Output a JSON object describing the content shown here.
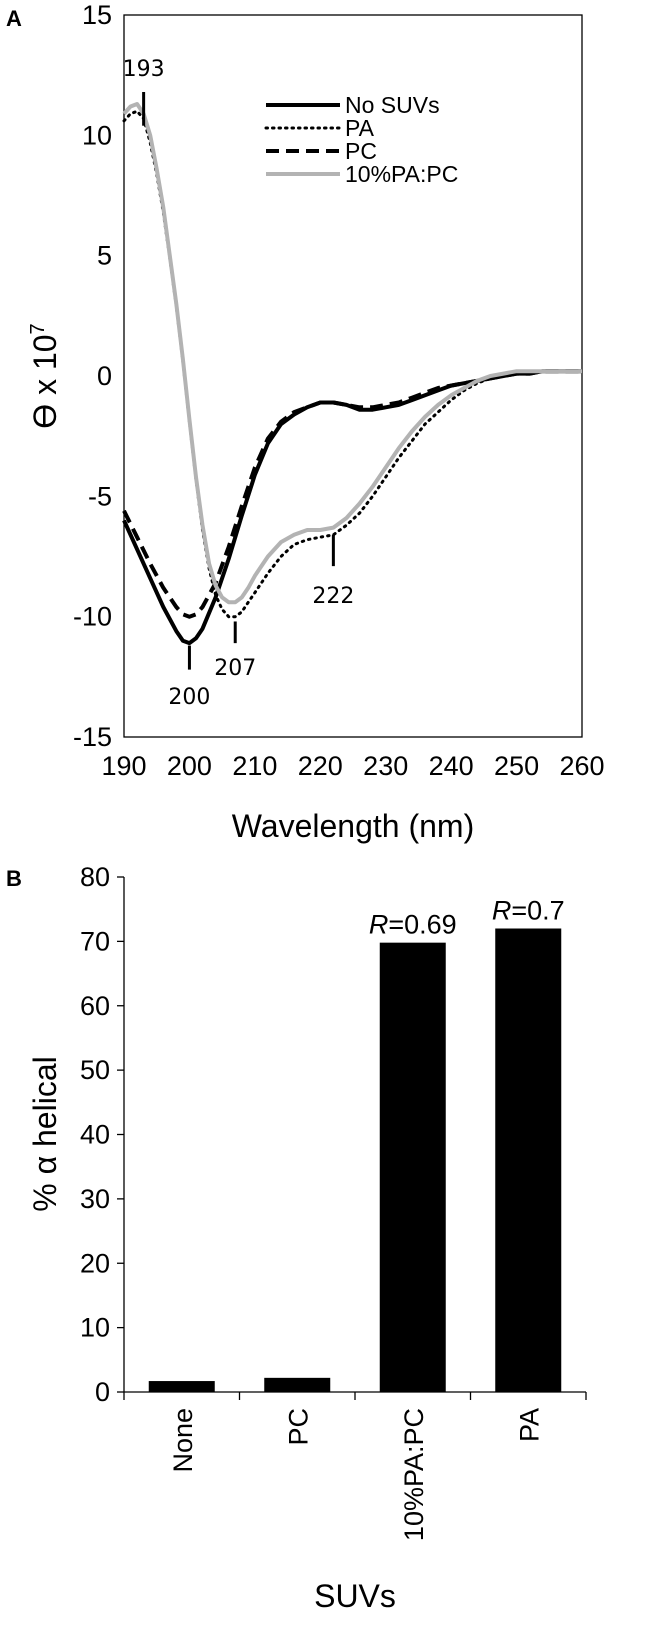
{
  "chart_data": [
    {
      "panel": "A",
      "type": "line",
      "xlabel": "Wavelength (nm)",
      "ylabel": "ϴ x 10",
      "ylabel_sup": "7",
      "xlim": [
        190,
        260
      ],
      "ylim": [
        -15,
        15
      ],
      "xticks": [
        190,
        200,
        210,
        220,
        230,
        240,
        250,
        260
      ],
      "yticks": [
        -15,
        -10,
        -5,
        0,
        5,
        10,
        15
      ],
      "grid": false,
      "legend": "top-right",
      "series": [
        {
          "name": "No SUVs",
          "color": "#000000",
          "dash": "solid",
          "x": [
            190,
            192,
            194,
            196,
            198,
            199,
            200,
            201,
            202,
            204,
            206,
            208,
            210,
            212,
            214,
            216,
            218,
            220,
            222,
            224,
            226,
            228,
            230,
            232,
            234,
            236,
            238,
            240,
            242,
            244,
            246,
            248,
            250,
            252,
            254,
            256,
            258,
            260
          ],
          "y": [
            -6,
            -7.2,
            -8.4,
            -9.6,
            -10.6,
            -11,
            -11.1,
            -10.9,
            -10.5,
            -9.2,
            -7.6,
            -5.8,
            -4.1,
            -2.8,
            -2,
            -1.6,
            -1.3,
            -1.1,
            -1.1,
            -1.2,
            -1.4,
            -1.4,
            -1.3,
            -1.2,
            -1,
            -0.8,
            -0.6,
            -0.4,
            -0.3,
            -0.2,
            -0.1,
            0,
            0.1,
            0.1,
            0.2,
            0.2,
            0.2,
            0.2
          ]
        },
        {
          "name": "PA",
          "color": "#000000",
          "dash": "dotted",
          "x": [
            190,
            191,
            192,
            193,
            194,
            195,
            196,
            197,
            198,
            199,
            200,
            201,
            202,
            203,
            204,
            205,
            206,
            207,
            208,
            209,
            210,
            212,
            214,
            216,
            218,
            220,
            222,
            224,
            226,
            228,
            230,
            232,
            234,
            236,
            238,
            240,
            242,
            244,
            246,
            248,
            250,
            252,
            254,
            256,
            258,
            260
          ],
          "y": [
            10.6,
            10.9,
            11,
            10.7,
            9.7,
            8.4,
            6.8,
            4.9,
            2.9,
            0.6,
            -1.9,
            -4.3,
            -6.4,
            -8,
            -9.1,
            -9.7,
            -10,
            -10,
            -9.8,
            -9.4,
            -9,
            -8.2,
            -7.5,
            -7,
            -6.8,
            -6.7,
            -6.6,
            -6.2,
            -5.7,
            -5,
            -4.2,
            -3.4,
            -2.7,
            -2,
            -1.5,
            -1,
            -0.6,
            -0.3,
            -0.1,
            0,
            0.1,
            0.2,
            0.2,
            0.2,
            0.2,
            0.2
          ]
        },
        {
          "name": "PC",
          "color": "#000000",
          "dash": "dashed",
          "x": [
            190,
            192,
            194,
            196,
            198,
            199,
            200,
            201,
            202,
            204,
            206,
            208,
            210,
            212,
            214,
            216,
            218,
            220,
            222,
            224,
            226,
            228,
            230,
            232,
            234,
            236,
            238,
            240,
            242,
            244,
            246,
            248,
            250,
            252,
            254,
            256,
            258,
            260
          ],
          "y": [
            -5.6,
            -6.7,
            -7.8,
            -8.8,
            -9.6,
            -9.9,
            -10,
            -9.9,
            -9.6,
            -8.6,
            -7.1,
            -5.4,
            -3.8,
            -2.6,
            -1.9,
            -1.5,
            -1.3,
            -1.1,
            -1.1,
            -1.2,
            -1.3,
            -1.3,
            -1.2,
            -1.1,
            -0.9,
            -0.7,
            -0.5,
            -0.4,
            -0.3,
            -0.2,
            -0.1,
            0,
            0.1,
            0.1,
            0.2,
            0.2,
            0.2,
            0.2
          ]
        },
        {
          "name": "10%PA:PC",
          "color": "#b3b3b3",
          "dash": "solid",
          "x": [
            190,
            191,
            192,
            193,
            194,
            195,
            196,
            197,
            198,
            199,
            200,
            201,
            202,
            203,
            204,
            205,
            206,
            207,
            208,
            209,
            210,
            212,
            214,
            216,
            218,
            220,
            222,
            224,
            226,
            228,
            230,
            232,
            234,
            236,
            238,
            240,
            242,
            244,
            246,
            248,
            250,
            252,
            254,
            256,
            258,
            260
          ],
          "y": [
            10.9,
            11.2,
            11.3,
            10.9,
            10,
            8.6,
            7,
            5,
            3,
            0.7,
            -1.8,
            -4.2,
            -6.2,
            -7.8,
            -8.7,
            -9.2,
            -9.4,
            -9.4,
            -9.2,
            -8.8,
            -8.3,
            -7.5,
            -6.9,
            -6.6,
            -6.4,
            -6.4,
            -6.3,
            -5.9,
            -5.3,
            -4.6,
            -3.8,
            -3,
            -2.3,
            -1.7,
            -1.2,
            -0.8,
            -0.5,
            -0.2,
            0,
            0.1,
            0.2,
            0.2,
            0.2,
            0.2,
            0.2,
            0.2
          ]
        }
      ],
      "annotations": [
        {
          "text": "193",
          "x": 193,
          "y": 11,
          "tick_from": 10.4,
          "tick_to": 11.8,
          "label_y": 12.8
        },
        {
          "text": "200",
          "x": 200,
          "y": -11.1,
          "tick_from": -11.2,
          "tick_to": -12.2,
          "label_y": -13.3
        },
        {
          "text": "207",
          "x": 207,
          "y": -10,
          "tick_from": -10.2,
          "tick_to": -11.1,
          "label_y": -12.1
        },
        {
          "text": "222",
          "x": 222,
          "y": -6.6,
          "tick_from": -6.6,
          "tick_to": -7.9,
          "label_y": -9.1
        }
      ]
    },
    {
      "panel": "B",
      "type": "bar",
      "xlabel": "SUVs",
      "ylabel": "% α helical",
      "ylim": [
        0,
        80
      ],
      "yticks": [
        0,
        10,
        20,
        30,
        40,
        50,
        60,
        70,
        80
      ],
      "categories": [
        "None",
        "PC",
        "10%PA:PC",
        "PA"
      ],
      "values": [
        1.7,
        2.2,
        69.8,
        72.0
      ],
      "color": "#000000",
      "bar_labels": [
        {
          "category": "10%PA:PC",
          "prefix": "R",
          "value": "=0.69"
        },
        {
          "category": "PA",
          "prefix": "R",
          "value": "=0.7"
        }
      ]
    }
  ]
}
